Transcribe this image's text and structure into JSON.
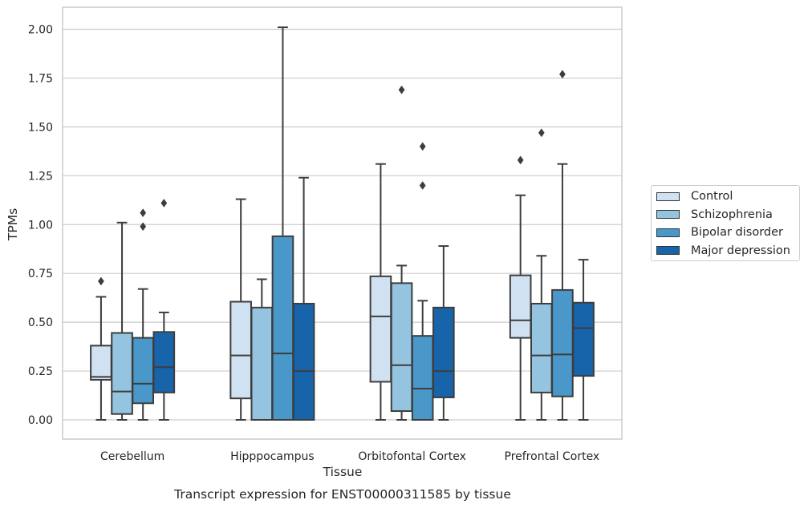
{
  "chart_data": {
    "type": "box",
    "title": "",
    "caption": "Transcript expression for ENST00000311585 by tissue",
    "xlabel": "Tissue",
    "ylabel": "TPMs",
    "ylim": [
      -0.1,
      2.12
    ],
    "yticks": [
      "0.00",
      "0.25",
      "0.50",
      "0.75",
      "1.00",
      "1.25",
      "1.50",
      "1.75",
      "2.00"
    ],
    "grid": true,
    "legend_position": "right",
    "categories": [
      "Cerebellum",
      "Hipppocampus",
      "Orbitofontal Cortex",
      "Prefrontal Cortex"
    ],
    "series": [
      {
        "name": "Control",
        "color": "#d0e1f2",
        "boxes": [
          {
            "whisker_low": 0.0,
            "q1": 0.205,
            "median": 0.22,
            "q3": 0.38,
            "whisker_high": 0.63,
            "outliers": [
              0.71
            ]
          },
          {
            "whisker_low": 0.0,
            "q1": 0.11,
            "median": 0.33,
            "q3": 0.605,
            "whisker_high": 1.13,
            "outliers": []
          },
          {
            "whisker_low": 0.0,
            "q1": 0.195,
            "median": 0.53,
            "q3": 0.735,
            "whisker_high": 1.31,
            "outliers": []
          },
          {
            "whisker_low": 0.0,
            "q1": 0.42,
            "median": 0.51,
            "q3": 0.74,
            "whisker_high": 1.15,
            "outliers": [
              1.33
            ]
          }
        ]
      },
      {
        "name": "Schizophrenia",
        "color": "#94c4df",
        "boxes": [
          {
            "whisker_low": 0.0,
            "q1": 0.03,
            "median": 0.145,
            "q3": 0.445,
            "whisker_high": 1.01,
            "outliers": []
          },
          {
            "whisker_low": 0.0,
            "q1": 0.0,
            "median": 0.0,
            "q3": 0.575,
            "whisker_high": 0.72,
            "outliers": []
          },
          {
            "whisker_low": 0.0,
            "q1": 0.045,
            "median": 0.28,
            "q3": 0.7,
            "whisker_high": 0.79,
            "outliers": [
              1.69
            ]
          },
          {
            "whisker_low": 0.0,
            "q1": 0.14,
            "median": 0.33,
            "q3": 0.595,
            "whisker_high": 0.84,
            "outliers": [
              1.47
            ]
          }
        ]
      },
      {
        "name": "Bipolar disorder",
        "color": "#4a98c9",
        "boxes": [
          {
            "whisker_low": 0.0,
            "q1": 0.085,
            "median": 0.185,
            "q3": 0.42,
            "whisker_high": 0.67,
            "outliers": [
              0.99,
              1.06
            ]
          },
          {
            "whisker_low": 0.0,
            "q1": 0.0,
            "median": 0.34,
            "q3": 0.94,
            "whisker_high": 2.01,
            "outliers": []
          },
          {
            "whisker_low": 0.0,
            "q1": 0.0,
            "median": 0.16,
            "q3": 0.43,
            "whisker_high": 0.61,
            "outliers": [
              1.2,
              1.4
            ]
          },
          {
            "whisker_low": 0.0,
            "q1": 0.12,
            "median": 0.335,
            "q3": 0.665,
            "whisker_high": 1.31,
            "outliers": [
              1.77
            ]
          }
        ]
      },
      {
        "name": "Major depression",
        "color": "#1764ab",
        "boxes": [
          {
            "whisker_low": 0.0,
            "q1": 0.14,
            "median": 0.27,
            "q3": 0.45,
            "whisker_high": 0.55,
            "outliers": [
              1.11
            ]
          },
          {
            "whisker_low": 0.0,
            "q1": 0.0,
            "median": 0.25,
            "q3": 0.595,
            "whisker_high": 1.24,
            "outliers": []
          },
          {
            "whisker_low": 0.0,
            "q1": 0.115,
            "median": 0.25,
            "q3": 0.575,
            "whisker_high": 0.89,
            "outliers": []
          },
          {
            "whisker_low": 0.0,
            "q1": 0.225,
            "median": 0.47,
            "q3": 0.6,
            "whisker_high": 0.82,
            "outliers": []
          }
        ]
      }
    ]
  }
}
